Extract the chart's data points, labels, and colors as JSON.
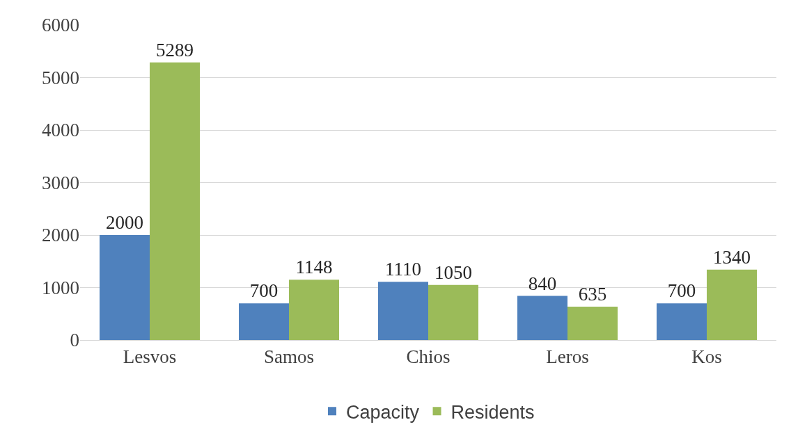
{
  "chart_data": {
    "type": "bar",
    "categories": [
      "Lesvos",
      "Samos",
      "Chios",
      "Leros",
      "Kos"
    ],
    "series": [
      {
        "name": "Capacity",
        "color": "#4f81bd",
        "values": [
          2000,
          700,
          1110,
          840,
          700
        ]
      },
      {
        "name": "Residents",
        "color": "#9bbb59",
        "values": [
          5289,
          1148,
          1050,
          635,
          1340
        ]
      }
    ],
    "ylim": [
      0,
      6000
    ],
    "yticks": [
      0,
      1000,
      2000,
      3000,
      4000,
      5000,
      6000
    ],
    "grid": "y",
    "legend": "bottom",
    "data_labels": true
  }
}
